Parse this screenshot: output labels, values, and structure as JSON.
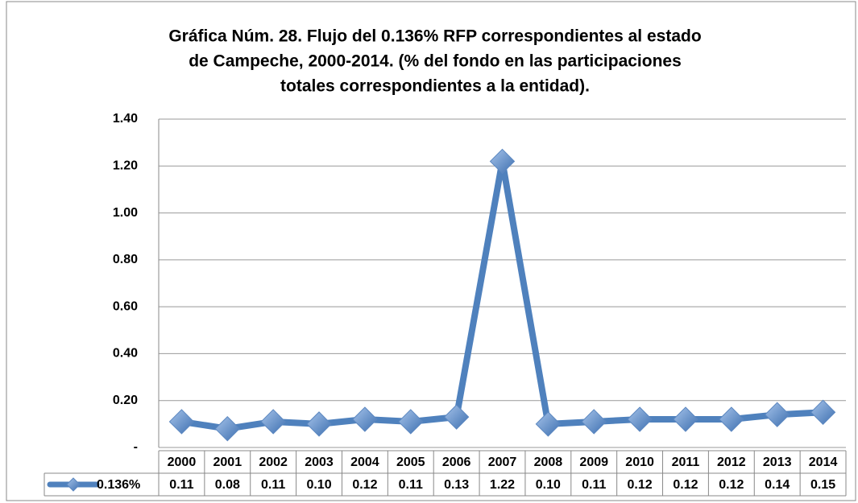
{
  "chart_data": {
    "type": "line",
    "title_lines": [
      "Gráfica Núm. 28. Flujo del 0.136% RFP correspondientes al estado",
      "de Campeche, 2000-2014. (% del fondo en las participaciones",
      "totales correspondientes a la entidad)."
    ],
    "categories": [
      "2000",
      "2001",
      "2002",
      "2003",
      "2004",
      "2005",
      "2006",
      "2007",
      "2008",
      "2009",
      "2010",
      "2011",
      "2012",
      "2013",
      "2014"
    ],
    "series": [
      {
        "name": "0.136%",
        "color": "#4f81bd",
        "values": [
          0.11,
          0.08,
          0.11,
          0.1,
          0.12,
          0.11,
          0.13,
          1.22,
          0.1,
          0.11,
          0.12,
          0.12,
          0.12,
          0.14,
          0.15
        ],
        "value_labels": [
          "0.11",
          "0.08",
          "0.11",
          "0.10",
          "0.12",
          "0.11",
          "0.13",
          "1.22",
          "0.10",
          "0.11",
          "0.12",
          "0.12",
          "0.12",
          "0.14",
          "0.15"
        ]
      }
    ],
    "ylim": [
      0,
      1.4
    ],
    "yticks": [
      {
        "value": 0,
        "label": "-"
      },
      {
        "value": 0.2,
        "label": "0.20"
      },
      {
        "value": 0.4,
        "label": "0.40"
      },
      {
        "value": 0.6,
        "label": "0.60"
      },
      {
        "value": 0.8,
        "label": "0.80"
      },
      {
        "value": 1.0,
        "label": "1.00"
      },
      {
        "value": 1.2,
        "label": "1.20"
      },
      {
        "value": 1.4,
        "label": "1.40"
      }
    ],
    "grid": true
  }
}
